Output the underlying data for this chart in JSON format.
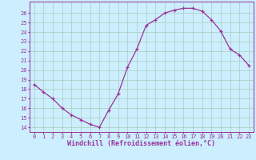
{
  "x": [
    0,
    1,
    2,
    3,
    4,
    5,
    6,
    7,
    8,
    9,
    10,
    11,
    12,
    13,
    14,
    15,
    16,
    17,
    18,
    19,
    20,
    21,
    22,
    23
  ],
  "y": [
    18.5,
    17.7,
    17.0,
    16.0,
    15.3,
    14.8,
    14.3,
    14.0,
    15.8,
    17.5,
    20.3,
    22.2,
    24.7,
    25.3,
    26.0,
    26.3,
    26.5,
    26.5,
    26.2,
    25.3,
    24.1,
    22.2,
    21.6,
    20.5
  ],
  "line_color": "#993399",
  "marker": "+",
  "markersize": 3.5,
  "linewidth": 0.9,
  "bg_color": "#cceeff",
  "grid_color": "#aaccbb",
  "xlabel": "Windchill (Refroidissement éolien,°C)",
  "ylabel": "",
  "ylim": [
    13.5,
    27.2
  ],
  "xlim": [
    -0.5,
    23.5
  ],
  "yticks": [
    14,
    15,
    16,
    17,
    18,
    19,
    20,
    21,
    22,
    23,
    24,
    25,
    26
  ],
  "xticks": [
    0,
    1,
    2,
    3,
    4,
    5,
    6,
    7,
    8,
    9,
    10,
    11,
    12,
    13,
    14,
    15,
    16,
    17,
    18,
    19,
    20,
    21,
    22,
    23
  ],
  "tick_color": "#993399",
  "tick_fontsize": 5.0,
  "xlabel_fontsize": 6.0,
  "axis_line_color": "#993399",
  "spine_color": "#993399"
}
